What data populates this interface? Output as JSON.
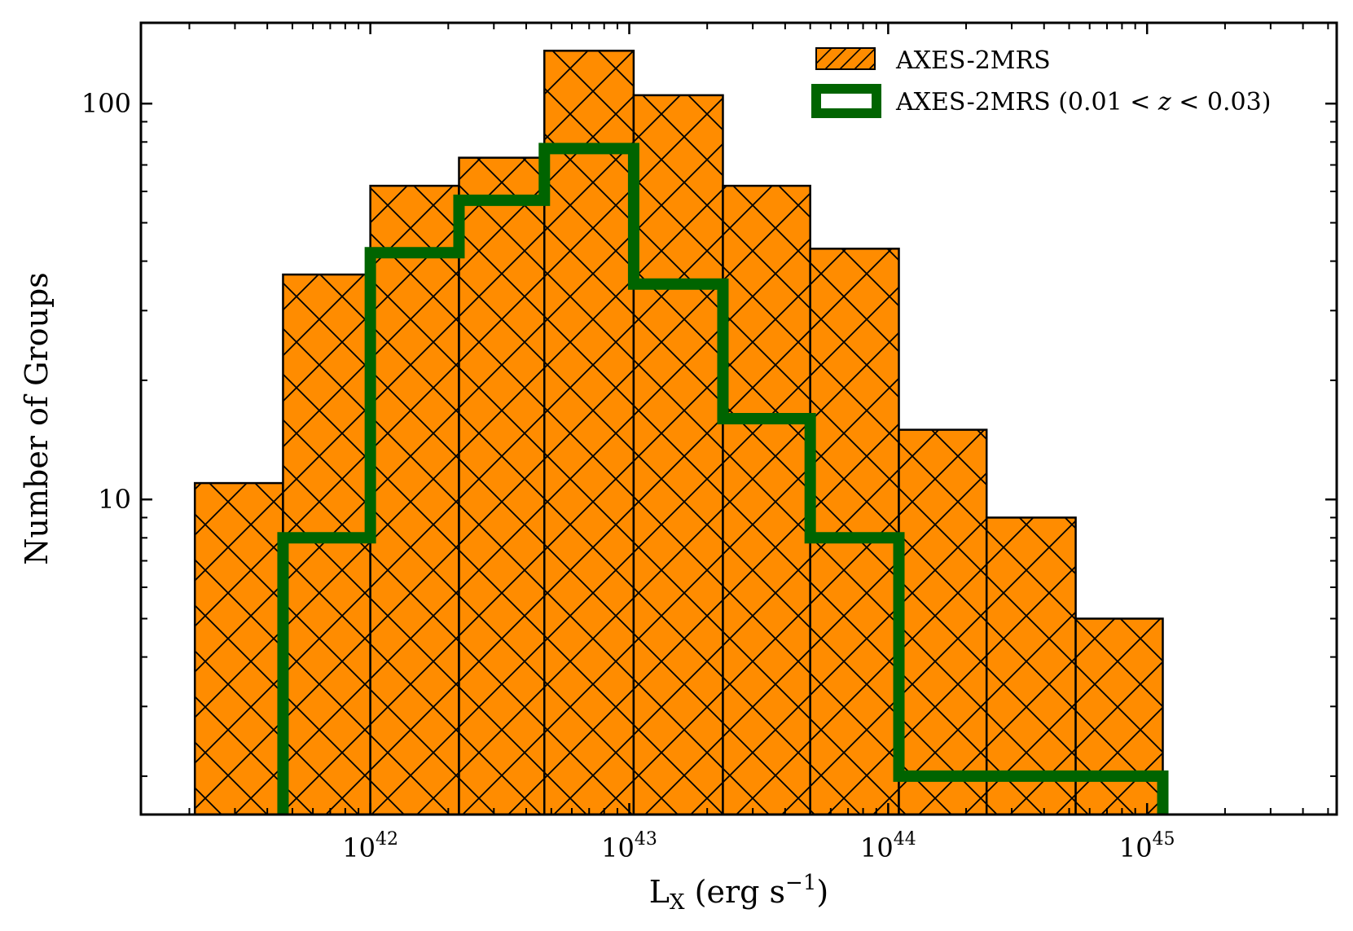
{
  "chart_data": {
    "type": "bar",
    "subtype": "histogram",
    "title": "",
    "xlabel": "L",
    "xlabel_sub": "X",
    "xlabel_unit": "(erg s",
    "xlabel_unit_exp": "−1",
    "xlabel_unit_close": ")",
    "ylabel": "Number of Groups",
    "x_scale": "log",
    "y_scale": "log",
    "xlim": [
      1.3e+41,
      5.4e+45
    ],
    "ylim": [
      1.6,
      160
    ],
    "grid": false,
    "legend_position": "top-right",
    "colors": {
      "hist_fill": "#ff8c00",
      "hist_edge": "#000000",
      "step_line": "#006400"
    },
    "x_ticks": [
      {
        "base": "10",
        "exp": "42",
        "value": 1e+42
      },
      {
        "base": "10",
        "exp": "43",
        "value": 1e+43
      },
      {
        "base": "10",
        "exp": "44",
        "value": 1e+44
      },
      {
        "base": "10",
        "exp": "45",
        "value": 1e+45
      }
    ],
    "y_ticks": [
      {
        "label": "10",
        "value": 10
      },
      {
        "label": "100",
        "value": 100
      }
    ],
    "bin_edges": [
      2.1e+41,
      4.6e+41,
      1e+42,
      2.2e+42,
      4.7e+42,
      1.04e+43,
      2.3e+43,
      5e+43,
      1.1e+44,
      2.4e+44,
      5.3e+44,
      1.15e+45
    ],
    "series": [
      {
        "name": "AXES-2MRS",
        "style": "bar",
        "hatch": "x",
        "values": [
          11,
          37,
          62,
          73,
          136,
          105,
          62,
          43,
          15,
          9,
          5
        ]
      },
      {
        "name": "AXES-2MRS (0.01 < z < 0.03)",
        "style": "step",
        "edges": [
          4.6e+41,
          1e+42,
          2.2e+42,
          4.7e+42,
          1.04e+43,
          2.3e+43,
          5e+43,
          1.1e+44,
          2.4e+44,
          5.3e+44,
          1.15e+45
        ],
        "values": [
          8,
          42,
          57,
          77,
          35,
          16,
          8,
          2,
          2,
          2
        ]
      }
    ],
    "legend": [
      {
        "label": "AXES-2MRS"
      },
      {
        "label_prefix": "AXES-2MRS (0.01 < ",
        "label_var": "z",
        "label_suffix": " < 0.03)"
      }
    ]
  }
}
